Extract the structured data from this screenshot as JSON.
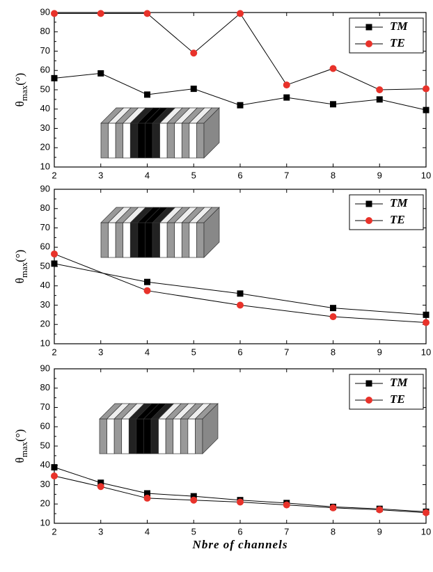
{
  "chart_data": [
    {
      "type": "line",
      "ylabel": {
        "symbol": "θ",
        "subscript": "max",
        "unit": "(°)"
      },
      "x": [
        2,
        3,
        4,
        5,
        6,
        7,
        8,
        9,
        10
      ],
      "xlim": [
        2,
        10
      ],
      "xticks": [
        2,
        3,
        4,
        5,
        6,
        7,
        8,
        9,
        10
      ],
      "ylim": [
        10,
        90
      ],
      "yticks": [
        10,
        20,
        30,
        40,
        50,
        60,
        70,
        80,
        90
      ],
      "legend": "upper right",
      "line_color": "#000000",
      "series": [
        {
          "name": "TM",
          "color": "#000000",
          "marker": "square",
          "values": [
            56,
            58.5,
            47.5,
            50.5,
            42,
            46,
            42.5,
            45,
            39.5
          ]
        },
        {
          "name": "TE",
          "color": "#e8322a",
          "marker": "circle",
          "values": [
            89.5,
            89.5,
            89.5,
            69,
            89.5,
            52.5,
            61,
            50,
            50.5
          ]
        }
      ]
    },
    {
      "type": "line",
      "ylabel": {
        "symbol": "θ",
        "subscript": "max",
        "unit": "(°)"
      },
      "x": [
        2,
        4,
        6,
        8,
        10
      ],
      "xlim": [
        2,
        10
      ],
      "xticks": [
        2,
        3,
        4,
        5,
        6,
        7,
        8,
        9,
        10
      ],
      "ylim": [
        10,
        90
      ],
      "yticks": [
        10,
        20,
        30,
        40,
        50,
        60,
        70,
        80,
        90
      ],
      "legend": "upper right",
      "line_color": "#000000",
      "series": [
        {
          "name": "TM",
          "color": "#000000",
          "marker": "square",
          "values": [
            51.5,
            42,
            36,
            28.5,
            25
          ]
        },
        {
          "name": "TE",
          "color": "#e8322a",
          "marker": "circle",
          "values": [
            56.5,
            37.5,
            30,
            24,
            21
          ]
        }
      ]
    },
    {
      "type": "line",
      "ylabel": {
        "symbol": "θ",
        "subscript": "max",
        "unit": "(°)"
      },
      "xlabel": "Nbre of channels",
      "x": [
        2,
        3,
        4,
        5,
        6,
        7,
        8,
        9,
        10
      ],
      "xlim": [
        2,
        10
      ],
      "xticks": [
        2,
        3,
        4,
        5,
        6,
        7,
        8,
        9,
        10
      ],
      "ylim": [
        10,
        90
      ],
      "yticks": [
        10,
        20,
        30,
        40,
        50,
        60,
        70,
        80,
        90
      ],
      "legend": "upper right",
      "line_color": "#000000",
      "series": [
        {
          "name": "TM",
          "color": "#000000",
          "marker": "square",
          "values": [
            39,
            31,
            25.5,
            24,
            22,
            20.5,
            18.5,
            17.5,
            16
          ]
        },
        {
          "name": "TE",
          "color": "#e8322a",
          "marker": "circle",
          "values": [
            34.5,
            29,
            23,
            22,
            21,
            19.5,
            18,
            17,
            15.5
          ]
        }
      ]
    }
  ]
}
